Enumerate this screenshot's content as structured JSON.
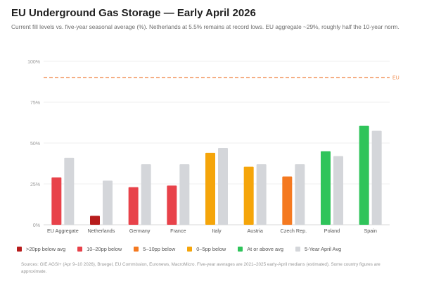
{
  "title": "EU Underground Gas Storage — Early April 2026",
  "subtitle": "Current fill levels vs. five-year seasonal average (%). Netherlands at 5.5% remains at record lows. EU aggregate ~29%, roughly half the 10-year norm.",
  "footer": "Sources: GIE AGSI+ (Apr 9–10 2026), Bruegel, EU Commission, Euronews, MacroMicro. Five-year averages are 2021–2025 early-April medians (estimated). Some country figures are approximate.",
  "colors": {
    "severe": "#b71c1c",
    "high": "#e8424a",
    "mid": "#f47920",
    "low": "#f5a50a",
    "good": "#2fc45a",
    "avg": "#d4d6da",
    "target": "#f08a4b"
  },
  "legend": [
    {
      "label": ">20pp below avg",
      "color": "#b71c1c"
    },
    {
      "label": "10–20pp below",
      "color": "#e8424a"
    },
    {
      "label": "5–10pp below",
      "color": "#f47920"
    },
    {
      "label": "0–5pp below",
      "color": "#f5a50a"
    },
    {
      "label": "At or above avg",
      "color": "#2fc45a"
    },
    {
      "label": "5-Year April Avg",
      "color": "#d4d6da"
    }
  ],
  "chart_data": {
    "type": "bar",
    "categories": [
      "EU Aggregate",
      "Netherlands",
      "Germany",
      "France",
      "Italy",
      "Austria",
      "Czech Rep.",
      "Poland",
      "Spain"
    ],
    "series": [
      {
        "values": [
          29,
          5.5,
          23,
          24,
          44,
          35.5,
          29.5,
          45,
          60.5
        ],
        "colors": [
          "#e8424a",
          "#b71c1c",
          "#e8424a",
          "#e8424a",
          "#f5a50a",
          "#f5a50a",
          "#f47920",
          "#2fc45a",
          "#2fc45a"
        ]
      },
      {
        "name": "5-Year April Avg",
        "values": [
          41,
          27,
          37,
          37,
          47,
          37,
          37,
          42,
          57.5
        ]
      }
    ],
    "ylim": [
      0,
      100
    ],
    "yticks": [
      0,
      25,
      50,
      75,
      100
    ],
    "ytick_labels": [
      "0%",
      "25%",
      "50%",
      "75%",
      "100%"
    ],
    "reference_line": {
      "value": 90,
      "label": "EU"
    },
    "grid": true
  }
}
